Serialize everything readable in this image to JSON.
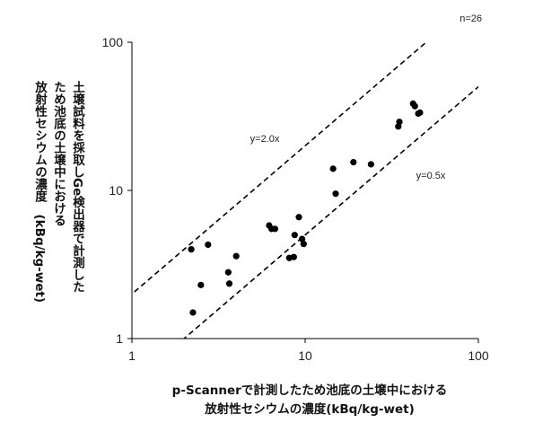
{
  "chart_data": {
    "type": "scatter",
    "x_scale": "log",
    "y_scale": "log",
    "xlim": [
      1,
      100
    ],
    "ylim": [
      1,
      100
    ],
    "x_ticks": [
      "1",
      "10",
      "100"
    ],
    "y_ticks": [
      "1",
      "10",
      "100"
    ],
    "grid": false,
    "xlabel_lines": [
      "p-Scannerで計測したため池底の土壌中における",
      "放射性セシウムの濃度(kBq/kg-wet)"
    ],
    "ylabel_lines": [
      "土壌試料を採取しGe検出器で計測した",
      "ため池底の土壌中における",
      "放射性セシウムの濃度　(kBq/kg-wet)"
    ],
    "annotation": "n=26",
    "reference_lines": [
      {
        "label": "y=2.0x",
        "slope": 2.0
      },
      {
        "label": "y=0.5x",
        "slope": 0.5
      }
    ],
    "points": [
      {
        "x": 2.2,
        "y": 4.0
      },
      {
        "x": 2.25,
        "y": 1.5
      },
      {
        "x": 2.5,
        "y": 2.3
      },
      {
        "x": 2.75,
        "y": 4.3
      },
      {
        "x": 3.6,
        "y": 2.8
      },
      {
        "x": 3.65,
        "y": 2.35
      },
      {
        "x": 4.0,
        "y": 3.6
      },
      {
        "x": 6.2,
        "y": 5.8
      },
      {
        "x": 6.4,
        "y": 5.5
      },
      {
        "x": 6.7,
        "y": 5.5
      },
      {
        "x": 8.1,
        "y": 3.5
      },
      {
        "x": 8.6,
        "y": 3.55
      },
      {
        "x": 8.7,
        "y": 5.0
      },
      {
        "x": 9.2,
        "y": 6.6
      },
      {
        "x": 9.6,
        "y": 4.7
      },
      {
        "x": 9.8,
        "y": 4.35
      },
      {
        "x": 14.5,
        "y": 14.0
      },
      {
        "x": 15.0,
        "y": 9.5
      },
      {
        "x": 19.0,
        "y": 15.5
      },
      {
        "x": 24.0,
        "y": 15.0
      },
      {
        "x": 34.5,
        "y": 27.0
      },
      {
        "x": 35.0,
        "y": 29.0
      },
      {
        "x": 42.0,
        "y": 38.5
      },
      {
        "x": 43.0,
        "y": 37.0
      },
      {
        "x": 45.0,
        "y": 33.0
      },
      {
        "x": 46.0,
        "y": 33.5
      }
    ]
  }
}
